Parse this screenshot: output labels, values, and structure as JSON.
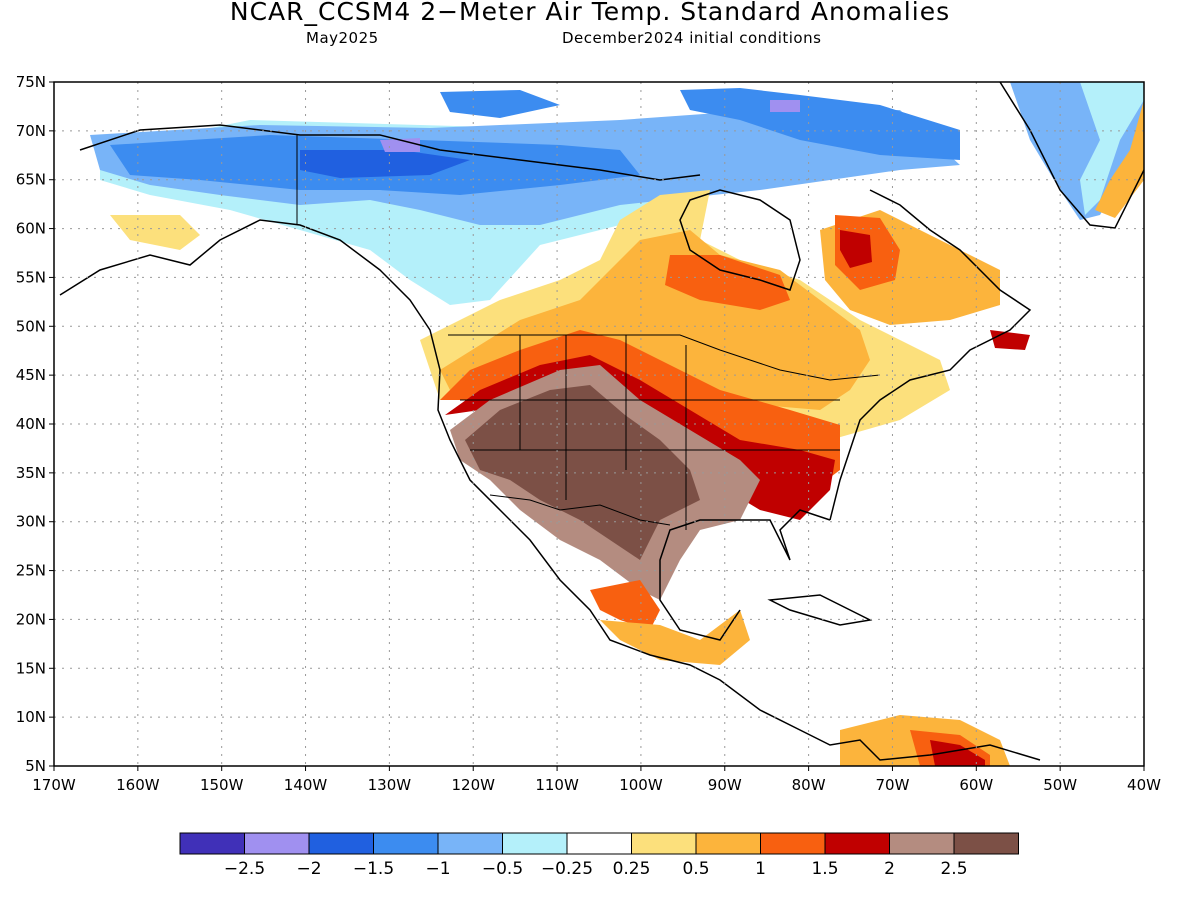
{
  "header": {
    "title": "NCAR_CCSM4 2−Meter Air Temp. Standard Anomalies",
    "subtitle_left": "May2025",
    "subtitle_right": "December2024 initial conditions"
  },
  "map": {
    "lat_labels": [
      "75N",
      "70N",
      "65N",
      "60N",
      "55N",
      "50N",
      "45N",
      "40N",
      "35N",
      "30N",
      "25N",
      "20N",
      "15N",
      "10N",
      "5N"
    ],
    "lon_labels": [
      "170W",
      "160W",
      "150W",
      "140W",
      "130W",
      "120W",
      "110W",
      "100W",
      "90W",
      "80W",
      "70W",
      "60W",
      "50W",
      "40W"
    ],
    "lat_range": [
      5,
      75
    ],
    "lon_range": [
      -170,
      -40
    ],
    "gridlines": "dotted",
    "projection": "cylindrical equidistant",
    "colors": {
      "land_outline": "#000000",
      "background": "#ffffff"
    },
    "anomaly_regions": [
      {
        "area": "Alaska / NW Canada",
        "category": "-1.5 to -1"
      },
      {
        "area": "Canadian Arctic",
        "category": "-1 to -0.5"
      },
      {
        "area": "SW United States",
        "category": "> 2.5"
      },
      {
        "area": "Southern Plains / Mexico",
        "category": "2 to 2.5"
      },
      {
        "area": "Southeast US",
        "category": "1.5 to 2"
      },
      {
        "area": "Northern Plains / Great Lakes",
        "category": "1 to 1.5"
      },
      {
        "area": "Quebec / Labrador",
        "category": "1 to 2"
      },
      {
        "area": "Southern Greenland",
        "category": "0.5 to 1"
      }
    ]
  },
  "colorbar": {
    "colors": [
      "#4030b8",
      "#a090f0",
      "#2060e0",
      "#3c8cf0",
      "#78b4f8",
      "#b4f0fa",
      "#ffffff",
      "#fce07c",
      "#fcb43c",
      "#f86010",
      "#c00000",
      "#b48c80",
      "#7c5046"
    ],
    "labels": [
      "−2.5",
      "−2",
      "−1.5",
      "−1",
      "−0.5",
      "−0.25",
      "0.25",
      "0.5",
      "1",
      "1.5",
      "2",
      "2.5"
    ]
  }
}
